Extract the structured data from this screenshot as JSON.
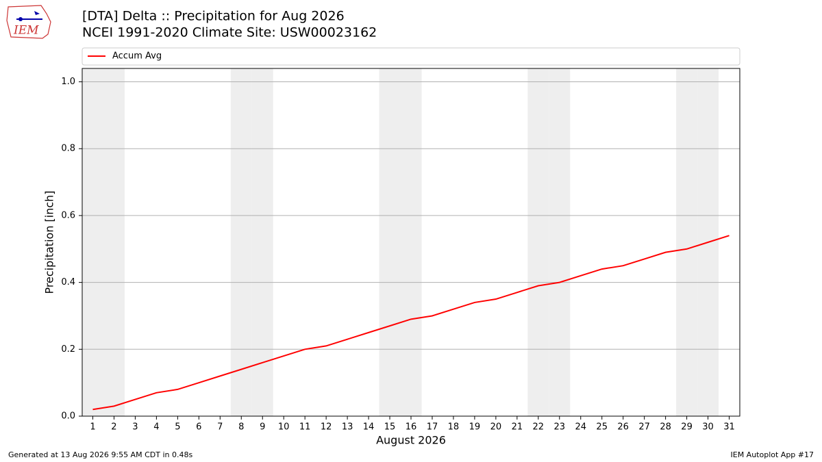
{
  "logo_text": "IEM",
  "chart_data": {
    "type": "line",
    "title": "[DTA] Delta :: Precipitation for Aug 2026",
    "subtitle": "NCEI 1991-2020 Climate Site: USW00023162",
    "xlabel": "August 2026",
    "ylabel": "Precipitation [inch]",
    "x": [
      1,
      2,
      3,
      4,
      5,
      6,
      7,
      8,
      9,
      10,
      11,
      12,
      13,
      14,
      15,
      16,
      17,
      18,
      19,
      20,
      21,
      22,
      23,
      24,
      25,
      26,
      27,
      28,
      29,
      30,
      31
    ],
    "series": [
      {
        "name": "Accum Avg",
        "color": "#ff0000",
        "values": [
          0.02,
          0.03,
          0.05,
          0.07,
          0.08,
          0.1,
          0.12,
          0.14,
          0.16,
          0.18,
          0.2,
          0.21,
          0.23,
          0.25,
          0.27,
          0.29,
          0.3,
          0.32,
          0.34,
          0.35,
          0.37,
          0.39,
          0.4,
          0.42,
          0.44,
          0.45,
          0.47,
          0.49,
          0.5,
          0.52,
          0.54
        ]
      }
    ],
    "xlim": [
      0.5,
      31.5
    ],
    "xticks": [
      1,
      2,
      3,
      4,
      5,
      6,
      7,
      8,
      9,
      10,
      11,
      12,
      13,
      14,
      15,
      16,
      17,
      18,
      19,
      20,
      21,
      22,
      23,
      24,
      25,
      26,
      27,
      28,
      29,
      30,
      31
    ],
    "ylim": [
      0,
      1.04
    ],
    "yticks": [
      {
        "value": 0,
        "label": "0.0"
      },
      0.2,
      0.4,
      0.6,
      0.8,
      {
        "value": 1,
        "label": "1.0"
      }
    ],
    "grid": true,
    "shaded_days": [
      1,
      2,
      8,
      9,
      15,
      16,
      22,
      23,
      29,
      30
    ],
    "shade_color": "#eeeeee",
    "legend": "top",
    "footer_left": "Generated at 13 Aug 2026 9:55 AM CDT in 0.48s",
    "footer_right": "IEM Autoplot App #17"
  }
}
